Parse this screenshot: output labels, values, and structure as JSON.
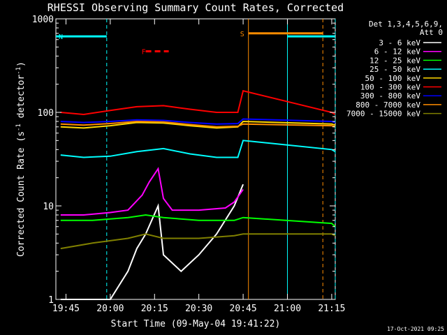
{
  "chart_data": {
    "type": "line",
    "title": "RHESSI Observing Summary Count Rates, Corrected",
    "xlabel": "Start Time (09-May-04 19:41:22)",
    "ylabel_main": "Corrected Count Rate (s",
    "ylabel_sup1": "-1",
    "ylabel_mid": " detector",
    "ylabel_sup2": "-1",
    "ylabel_end": ")",
    "y_scale": "log",
    "ylim": [
      1,
      1000
    ],
    "xlim_minutes": [
      19.693,
      21.27
    ],
    "x_ticks": [
      {
        "t": 19.75,
        "label": "19:45"
      },
      {
        "t": 20.0,
        "label": "20:00"
      },
      {
        "t": 20.25,
        "label": "20:15"
      },
      {
        "t": 20.5,
        "label": "20:30"
      },
      {
        "t": 20.75,
        "label": "20:45"
      },
      {
        "t": 21.0,
        "label": "21:00"
      },
      {
        "t": 21.25,
        "label": "21:15"
      }
    ],
    "y_ticks": [
      {
        "v": 1,
        "label": "1"
      },
      {
        "v": 10,
        "label": "10"
      },
      {
        "v": 100,
        "label": "100"
      },
      {
        "v": 1000,
        "label": "1000"
      }
    ],
    "legend_header": [
      "Det 1,3,4,5,6,9,",
      "Att 0"
    ],
    "series": [
      {
        "name": "3 - 6 keV",
        "color": "#ffffff",
        "points": [
          [
            19.72,
            1.0
          ],
          [
            19.85,
            1.0
          ],
          [
            20.0,
            1.0
          ],
          [
            20.1,
            2.0
          ],
          [
            20.15,
            3.5
          ],
          [
            20.2,
            5.0
          ],
          [
            20.27,
            10.0
          ],
          [
            20.3,
            3.0
          ],
          [
            20.4,
            2.0
          ],
          [
            20.5,
            3.0
          ],
          [
            20.6,
            5.0
          ],
          [
            20.7,
            10.0
          ],
          [
            20.75,
            17.0
          ]
        ]
      },
      {
        "name": "6 - 12 keV",
        "color": "#ff00ff",
        "points": [
          [
            19.72,
            8.0
          ],
          [
            19.85,
            8.0
          ],
          [
            20.0,
            8.5
          ],
          [
            20.1,
            9.0
          ],
          [
            20.18,
            13.0
          ],
          [
            20.22,
            18.0
          ],
          [
            20.27,
            25.0
          ],
          [
            20.3,
            12.0
          ],
          [
            20.35,
            9.0
          ],
          [
            20.5,
            9.0
          ],
          [
            20.65,
            9.5
          ],
          [
            20.7,
            11.0
          ],
          [
            20.75,
            15.0
          ]
        ]
      },
      {
        "name": "12 - 25 keV",
        "color": "#00ff00",
        "points": [
          [
            19.72,
            7.0
          ],
          [
            19.9,
            7.0
          ],
          [
            20.1,
            7.5
          ],
          [
            20.2,
            8.0
          ],
          [
            20.3,
            7.5
          ],
          [
            20.5,
            7.0
          ],
          [
            20.7,
            7.0
          ],
          [
            20.75,
            7.5
          ],
          [
            21.25,
            6.5
          ],
          [
            21.27,
            6.0
          ]
        ]
      },
      {
        "name": "25 - 50 keV",
        "color": "#00ffff",
        "points": [
          [
            19.72,
            35.0
          ],
          [
            19.85,
            33.0
          ],
          [
            20.0,
            34.0
          ],
          [
            20.15,
            38.0
          ],
          [
            20.3,
            41.0
          ],
          [
            20.45,
            36.0
          ],
          [
            20.6,
            33.0
          ],
          [
            20.72,
            33.0
          ],
          [
            20.75,
            50.0
          ],
          [
            21.25,
            40.0
          ],
          [
            21.27,
            38.0
          ]
        ]
      },
      {
        "name": "50 - 100 keV",
        "color": "#ffd700",
        "points": [
          [
            19.72,
            70.0
          ],
          [
            19.85,
            68.0
          ],
          [
            20.0,
            72.0
          ],
          [
            20.15,
            78.0
          ],
          [
            20.3,
            77.0
          ],
          [
            20.45,
            72.0
          ],
          [
            20.6,
            68.0
          ],
          [
            20.72,
            70.0
          ],
          [
            20.75,
            80.0
          ],
          [
            21.25,
            75.0
          ],
          [
            21.27,
            73.0
          ]
        ]
      },
      {
        "name": "100 - 300 keV",
        "color": "#ff0000",
        "points": [
          [
            19.72,
            100.0
          ],
          [
            19.85,
            95.0
          ],
          [
            20.0,
            105.0
          ],
          [
            20.15,
            115.0
          ],
          [
            20.3,
            118.0
          ],
          [
            20.45,
            108.0
          ],
          [
            20.6,
            100.0
          ],
          [
            20.72,
            100.0
          ],
          [
            20.75,
            170.0
          ],
          [
            21.25,
            100.0
          ],
          [
            21.27,
            95.0
          ]
        ]
      },
      {
        "name": "300 - 800 keV",
        "color": "#0000ff",
        "points": [
          [
            19.72,
            80.0
          ],
          [
            19.85,
            78.0
          ],
          [
            20.0,
            80.0
          ],
          [
            20.15,
            83.0
          ],
          [
            20.3,
            82.0
          ],
          [
            20.45,
            78.0
          ],
          [
            20.6,
            75.0
          ],
          [
            20.72,
            76.0
          ],
          [
            20.75,
            85.0
          ],
          [
            21.25,
            80.0
          ],
          [
            21.27,
            78.0
          ]
        ]
      },
      {
        "name": "800 - 7000 keV",
        "color": "#ff8c00",
        "points": [
          [
            19.72,
            75.0
          ],
          [
            19.85,
            73.0
          ],
          [
            20.0,
            76.0
          ],
          [
            20.15,
            80.0
          ],
          [
            20.3,
            79.0
          ],
          [
            20.45,
            74.0
          ],
          [
            20.6,
            70.0
          ],
          [
            20.72,
            71.0
          ],
          [
            20.75,
            75.0
          ],
          [
            21.25,
            72.0
          ],
          [
            21.27,
            70.0
          ]
        ]
      },
      {
        "name": "7000 - 15000 keV",
        "color": "#808000",
        "points": [
          [
            19.72,
            3.5
          ],
          [
            19.9,
            4.0
          ],
          [
            20.1,
            4.5
          ],
          [
            20.2,
            5.0
          ],
          [
            20.3,
            4.5
          ],
          [
            20.5,
            4.5
          ],
          [
            20.7,
            4.8
          ],
          [
            20.75,
            5.0
          ],
          [
            21.25,
            5.0
          ],
          [
            21.27,
            4.8
          ]
        ]
      }
    ],
    "annotations": {
      "N": {
        "label": "N",
        "color": "#00ffff",
        "t_start": 19.693,
        "t_end": 19.98,
        "v": 650
      },
      "F": {
        "label": "F",
        "color": "#ff0000",
        "t_start": 20.2,
        "t_end": 20.33,
        "v": 450
      },
      "S": {
        "label": "S",
        "color": "#ff8c00",
        "t_start": 20.78,
        "t_end": 21.2,
        "v": 700
      },
      "N2": {
        "label": "",
        "color": "#00ffff",
        "t_start": 21.0,
        "t_end": 21.27,
        "v": 650
      }
    },
    "vertical_lines": [
      {
        "t": 19.98,
        "color": "#00ffff",
        "style": "dashed"
      },
      {
        "t": 20.78,
        "color": "#ff8c00",
        "style": "solid"
      },
      {
        "t": 21.0,
        "color": "#00ffff",
        "style": "solid"
      },
      {
        "t": 21.2,
        "color": "#ff8c00",
        "style": "dashed"
      },
      {
        "t": 21.27,
        "color": "#00ffff",
        "style": "dashed"
      }
    ],
    "timestamp": "17-Oct-2021 09:25"
  }
}
